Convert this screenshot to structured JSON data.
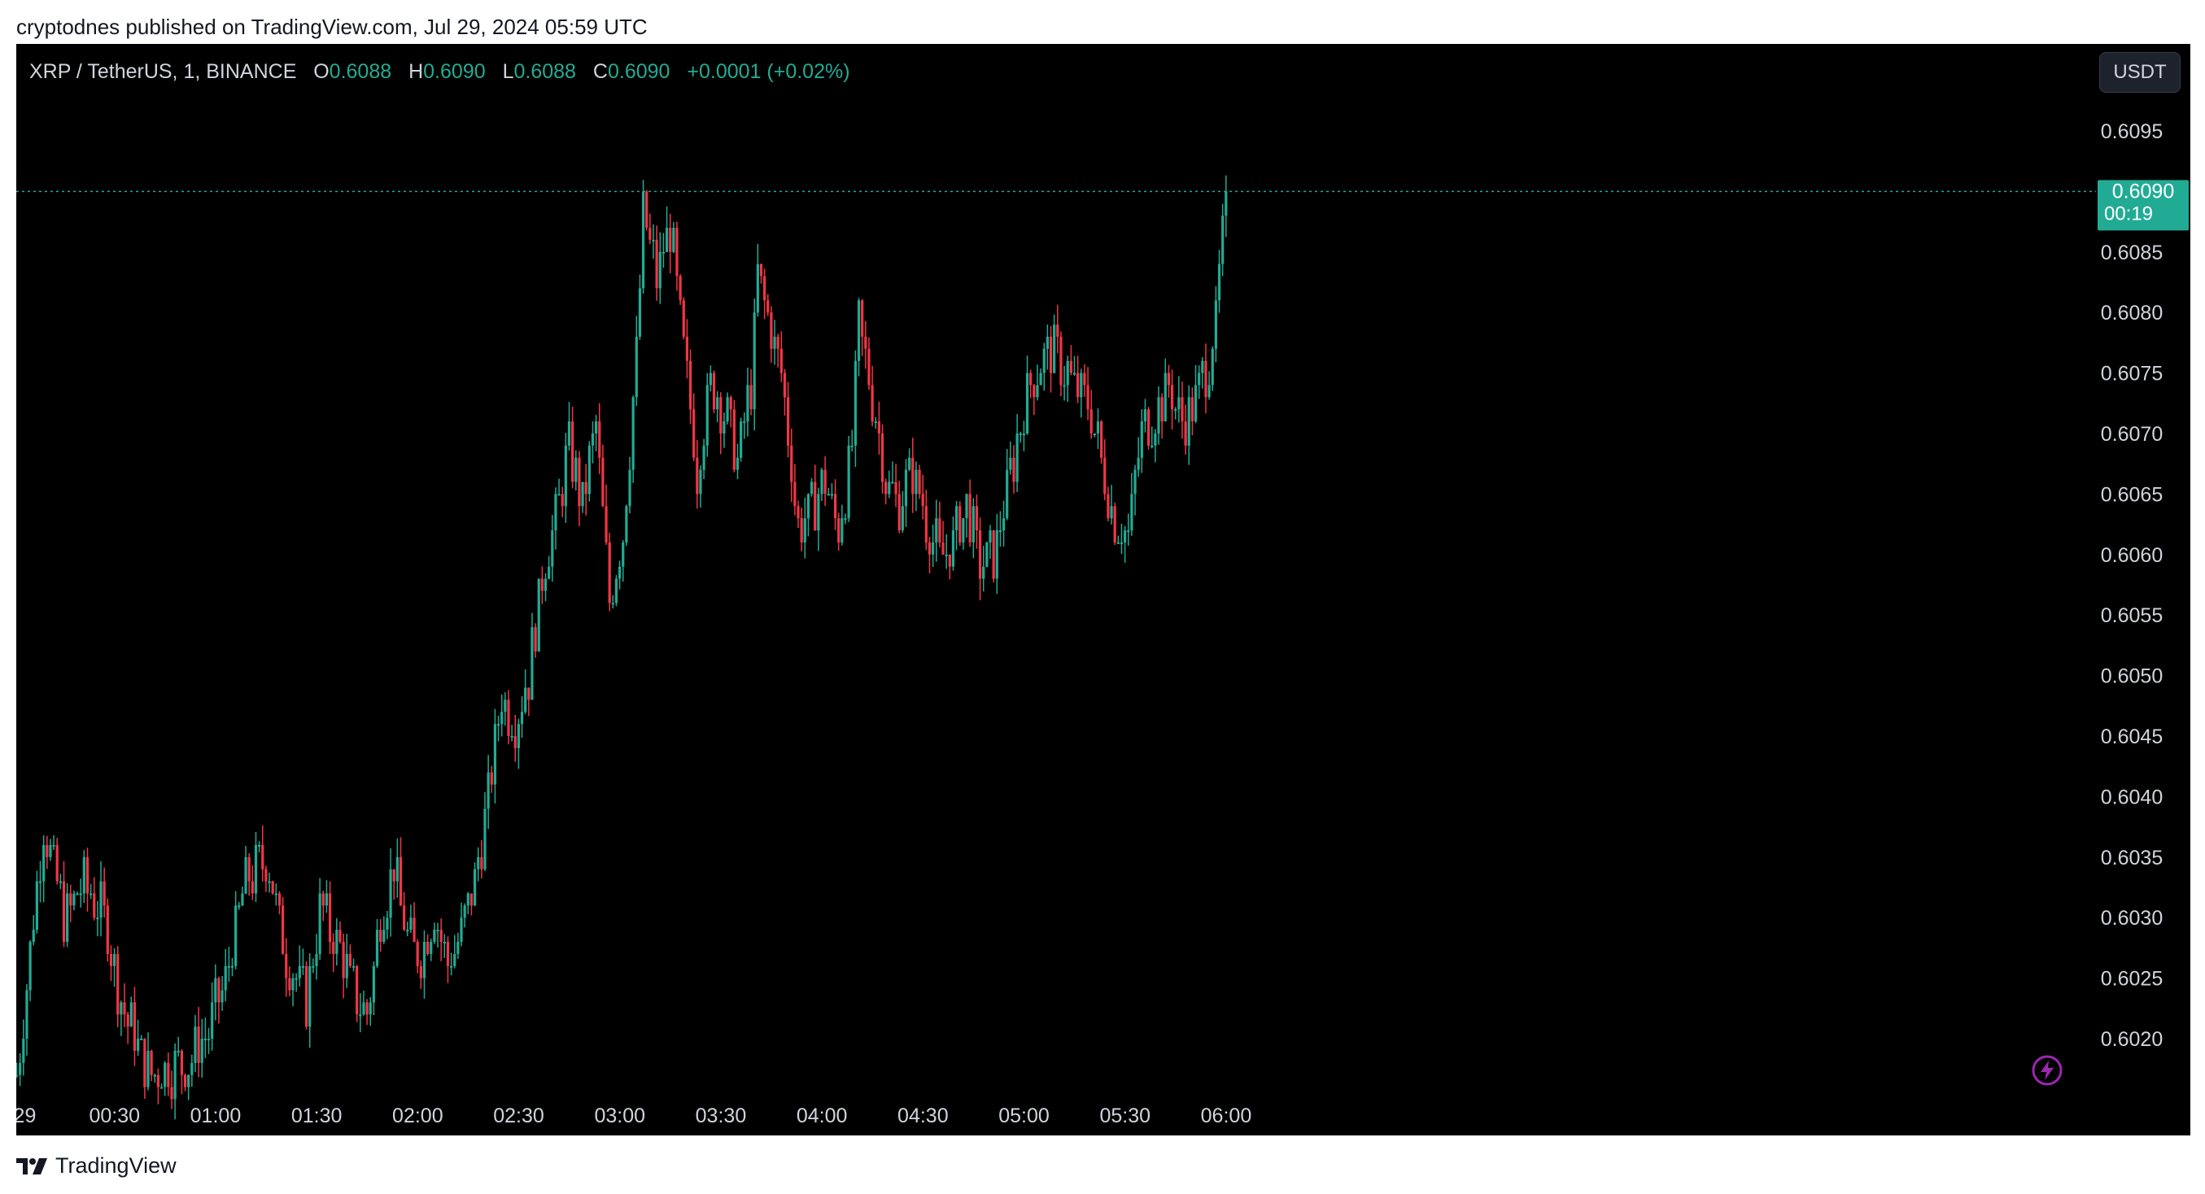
{
  "header": {
    "published": "cryptodnes published on TradingView.com, Jul 29, 2024 05:59 UTC"
  },
  "legend": {
    "symbol": "XRP / TetherUS, 1, BINANCE",
    "o_label": "O",
    "o_value": "0.6088",
    "h_label": "H",
    "h_value": "0.6090",
    "l_label": "L",
    "l_value": "0.6088",
    "c_label": "C",
    "c_value": "0.6090",
    "change": "+0.0001 (+0.02%)"
  },
  "currency_button": "USDT",
  "price_tag": {
    "price": "0.6090",
    "countdown": "00:19"
  },
  "footer": {
    "brand": "TradingView"
  },
  "colors": {
    "up": "#22ab94",
    "down": "#f23645",
    "background": "#000000",
    "text": "#d1d4dc"
  },
  "icons": [
    "tradingview-logo-icon",
    "lightning-icon"
  ],
  "chart_data": {
    "type": "candlestick",
    "title": "XRP / TetherUS, 1, BINANCE",
    "xlabel": "",
    "ylabel": "",
    "y_ticks": [
      "0.6095",
      "0.6090",
      "0.6085",
      "0.6080",
      "0.6075",
      "0.6070",
      "0.6065",
      "0.6060",
      "0.6055",
      "0.6050",
      "0.6045",
      "0.6040",
      "0.6035",
      "0.6030",
      "0.6025",
      "0.6020"
    ],
    "ylim": [
      0.60155,
      0.60995
    ],
    "x_ticks": [
      "29",
      "00:30",
      "01:00",
      "01:30",
      "02:00",
      "02:30",
      "03:00",
      "03:30",
      "04:00",
      "04:30",
      "05:00",
      "05:30",
      "06:00"
    ],
    "x_tick_minutes": [
      0,
      30,
      60,
      90,
      120,
      150,
      180,
      210,
      240,
      270,
      300,
      330,
      360
    ],
    "grid": false,
    "last_price": 0.609,
    "anchors": [
      {
        "t": 0,
        "p": 0.6017
      },
      {
        "t": 8,
        "p": 0.6038
      },
      {
        "t": 14,
        "p": 0.603
      },
      {
        "t": 20,
        "p": 0.6033
      },
      {
        "t": 26,
        "p": 0.603
      },
      {
        "t": 32,
        "p": 0.6022
      },
      {
        "t": 40,
        "p": 0.6017
      },
      {
        "t": 50,
        "p": 0.6018
      },
      {
        "t": 56,
        "p": 0.602
      },
      {
        "t": 62,
        "p": 0.6025
      },
      {
        "t": 68,
        "p": 0.6033
      },
      {
        "t": 74,
        "p": 0.6035
      },
      {
        "t": 80,
        "p": 0.6027
      },
      {
        "t": 86,
        "p": 0.6023
      },
      {
        "t": 90,
        "p": 0.6031
      },
      {
        "t": 95,
        "p": 0.6028
      },
      {
        "t": 100,
        "p": 0.6024
      },
      {
        "t": 104,
        "p": 0.6022
      },
      {
        "t": 108,
        "p": 0.603
      },
      {
        "t": 112,
        "p": 0.6034
      },
      {
        "t": 116,
        "p": 0.6028
      },
      {
        "t": 120,
        "p": 0.6027
      },
      {
        "t": 124,
        "p": 0.6031
      },
      {
        "t": 128,
        "p": 0.6026
      },
      {
        "t": 132,
        "p": 0.6029
      },
      {
        "t": 136,
        "p": 0.6033
      },
      {
        "t": 140,
        "p": 0.604
      },
      {
        "t": 144,
        "p": 0.6048
      },
      {
        "t": 148,
        "p": 0.6046
      },
      {
        "t": 152,
        "p": 0.605
      },
      {
        "t": 156,
        "p": 0.6058
      },
      {
        "t": 160,
        "p": 0.6063
      },
      {
        "t": 164,
        "p": 0.6069
      },
      {
        "t": 168,
        "p": 0.6064
      },
      {
        "t": 172,
        "p": 0.6071
      },
      {
        "t": 176,
        "p": 0.6056
      },
      {
        "t": 180,
        "p": 0.6062
      },
      {
        "t": 184,
        "p": 0.6076
      },
      {
        "t": 186,
        "p": 0.6088
      },
      {
        "t": 190,
        "p": 0.6083
      },
      {
        "t": 194,
        "p": 0.6087
      },
      {
        "t": 198,
        "p": 0.6077
      },
      {
        "t": 202,
        "p": 0.6067
      },
      {
        "t": 206,
        "p": 0.6074
      },
      {
        "t": 210,
        "p": 0.6072
      },
      {
        "t": 214,
        "p": 0.6068
      },
      {
        "t": 218,
        "p": 0.6074
      },
      {
        "t": 220,
        "p": 0.6083
      },
      {
        "t": 224,
        "p": 0.6079
      },
      {
        "t": 228,
        "p": 0.6073
      },
      {
        "t": 232,
        "p": 0.6062
      },
      {
        "t": 236,
        "p": 0.6064
      },
      {
        "t": 240,
        "p": 0.6066
      },
      {
        "t": 244,
        "p": 0.6062
      },
      {
        "t": 248,
        "p": 0.6069
      },
      {
        "t": 250,
        "p": 0.6079
      },
      {
        "t": 254,
        "p": 0.6073
      },
      {
        "t": 258,
        "p": 0.6066
      },
      {
        "t": 262,
        "p": 0.6064
      },
      {
        "t": 266,
        "p": 0.6067
      },
      {
        "t": 270,
        "p": 0.6063
      },
      {
        "t": 274,
        "p": 0.606
      },
      {
        "t": 278,
        "p": 0.6061
      },
      {
        "t": 282,
        "p": 0.6064
      },
      {
        "t": 286,
        "p": 0.6059
      },
      {
        "t": 290,
        "p": 0.606
      },
      {
        "t": 294,
        "p": 0.6065
      },
      {
        "t": 298,
        "p": 0.6071
      },
      {
        "t": 302,
        "p": 0.6075
      },
      {
        "t": 306,
        "p": 0.6077
      },
      {
        "t": 310,
        "p": 0.6076
      },
      {
        "t": 314,
        "p": 0.6074
      },
      {
        "t": 318,
        "p": 0.6073
      },
      {
        "t": 322,
        "p": 0.6068
      },
      {
        "t": 326,
        "p": 0.6063
      },
      {
        "t": 330,
        "p": 0.6062
      },
      {
        "t": 334,
        "p": 0.607
      },
      {
        "t": 338,
        "p": 0.6072
      },
      {
        "t": 342,
        "p": 0.6074
      },
      {
        "t": 346,
        "p": 0.6071
      },
      {
        "t": 350,
        "p": 0.6073
      },
      {
        "t": 354,
        "p": 0.6076
      },
      {
        "t": 356,
        "p": 0.6081
      },
      {
        "t": 358,
        "p": 0.6088
      },
      {
        "t": 359,
        "p": 0.609
      }
    ]
  }
}
